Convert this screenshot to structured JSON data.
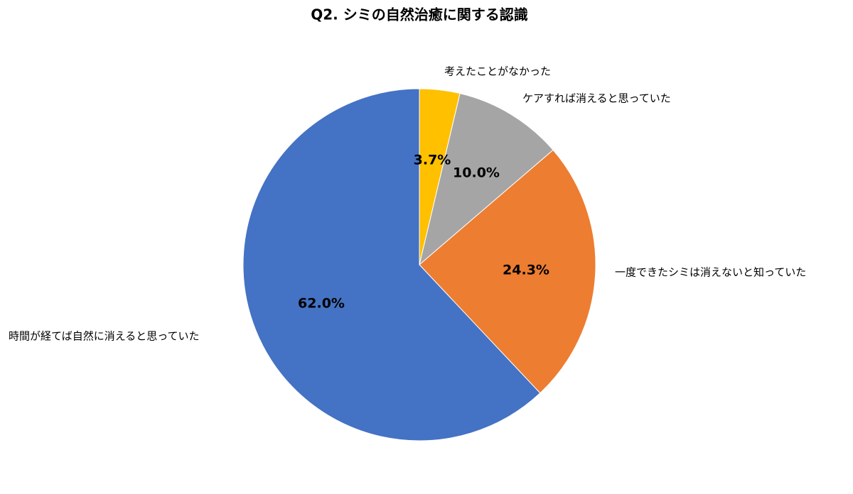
{
  "chart_data": {
    "type": "pie",
    "title": "Q2. シミの自然治癒に関する認識",
    "categories": [
      "考えたことがなかった",
      "ケアすれば消えると思っていた",
      "一度できたシミは消えないと知っていた",
      "時間が経てば自然に消えると思っていた"
    ],
    "values": [
      3.7,
      10.0,
      24.3,
      62.0
    ],
    "value_labels": [
      "3.7%",
      "10.0%",
      "24.3%",
      "62.0%"
    ],
    "colors": [
      "#ffc000",
      "#a5a5a5",
      "#ed7d31",
      "#4472c4"
    ]
  }
}
